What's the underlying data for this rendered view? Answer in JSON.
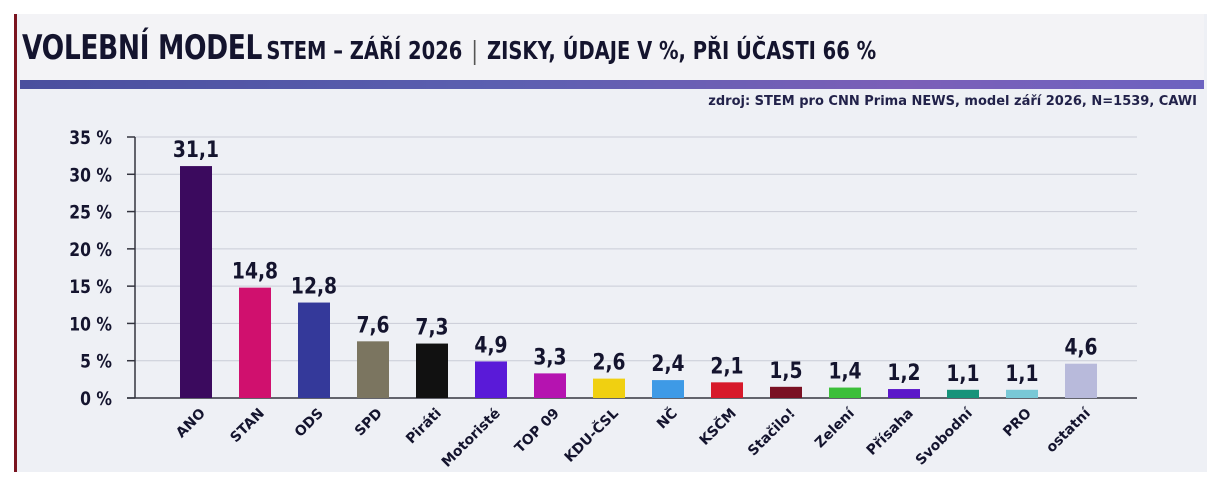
{
  "header": {
    "title_main": "VOLEBNÍ MODEL",
    "title_sub": "STEM – ZÁŘÍ 2026",
    "separator": "|",
    "title_desc": "ZISKY, ÚDAJE V %, PŘI ÚČASTI 66 %",
    "source": "zdroj: STEM pro CNN Prima NEWS, model září 2026, N=1539, CAWI"
  },
  "chart_data": {
    "type": "bar",
    "title": "VOLEBNÍ MODEL STEM – ZÁŘÍ 2026 | ZISKY, ÚDAJE V %, PŘI ÚČASTI 66 %",
    "xlabel": "",
    "ylabel": "",
    "ylim": [
      0,
      35
    ],
    "yticks": [
      "0 %",
      "5 %",
      "10 %",
      "15 %",
      "20 %",
      "25 %",
      "30 %",
      "35 %"
    ],
    "grid": true,
    "categories": [
      "ANO",
      "STAN",
      "ODS",
      "SPD",
      "Piráti",
      "Motoristé",
      "TOP 09",
      "KDU-ČSL",
      "NČ",
      "KSČM",
      "Stačilo!",
      "Zelení",
      "Přísaha",
      "Svobodní",
      "PRO",
      "ostatní"
    ],
    "values": [
      31.1,
      14.8,
      12.8,
      7.6,
      7.3,
      4.9,
      3.3,
      2.6,
      2.4,
      2.1,
      1.5,
      1.4,
      1.2,
      1.1,
      1.1,
      4.6
    ],
    "value_labels": [
      "31,1",
      "14,8",
      "12,8",
      "7,6",
      "7,3",
      "4,9",
      "3,3",
      "2,6",
      "2,4",
      "2,1",
      "1,5",
      "1,4",
      "1,2",
      "1,1",
      "1,1",
      "4,6"
    ],
    "colors": [
      "#3b0a5e",
      "#d0106e",
      "#34399a",
      "#7b7560",
      "#111111",
      "#5a1ad8",
      "#b513b0",
      "#f0d011",
      "#3e9ae6",
      "#d7192a",
      "#7a1023",
      "#3cbf3a",
      "#5b17c9",
      "#17937a",
      "#79c8d6",
      "#b8badb"
    ]
  }
}
